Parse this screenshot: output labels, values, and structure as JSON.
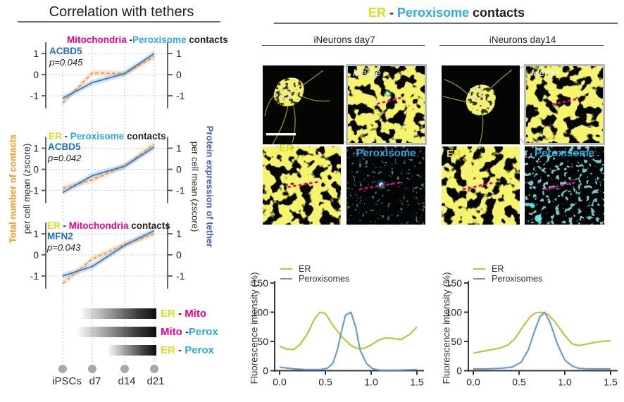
{
  "colors": {
    "er": "#d9e021",
    "mito": "#ec008c",
    "perox": "#2fa9e0",
    "tether": "#2272b9",
    "contacts_axis": "#f7941e",
    "tether_axis": "#4d5fae",
    "dark": "#231f20"
  },
  "left_panel": {
    "title": "Correlation with tethers",
    "y_left_line1": "Total number of contacts",
    "y_left_line2": "per cell mean (zscore)",
    "y_right_line1": "Protein expression of tether",
    "y_right_line2": "per cell mean (zscore)",
    "x_labels": [
      "iPSCs",
      "d7",
      "d14",
      "d21"
    ],
    "timeline_bars": [
      {
        "left": "ER",
        "sep": " - ",
        "right": "Mito"
      },
      {
        "left": "Mito",
        "sep": " -",
        "right": "Perox"
      },
      {
        "left": "ER",
        "sep": " - ",
        "right": "Perox"
      }
    ]
  },
  "right_panel": {
    "title_er": "ER",
    "title_sep": " - ",
    "title_perox": "Peroxisome",
    "title_suffix": " contacts",
    "col1_header": "iNeurons day7",
    "col2_header": "iNeurons day14",
    "labels": {
      "merge": "Merge",
      "er": "ER",
      "peroxisome": "Peroxisome"
    }
  },
  "chart_data": [
    {
      "id": "corr-mito-perox",
      "type": "line",
      "title_parts": [
        {
          "text": "Mitochondria",
          "color": "mito"
        },
        {
          "text": " -",
          "color": "dark"
        },
        {
          "text": "Peroxisome",
          "color": "perox"
        },
        {
          "text": " contacts",
          "color": "dark"
        }
      ],
      "tether": "ACBD5",
      "p_value": "p=0.045",
      "categories": [
        "iPSCs",
        "d7",
        "d14",
        "d21"
      ],
      "yticks": [
        1,
        0,
        -1
      ],
      "ylim": [
        -1.6,
        1.3
      ],
      "series": [
        {
          "name": "Total number of contacts (zscore)",
          "style": "dashed-orange",
          "values": [
            -1.35,
            0.08,
            0.05,
            0.85
          ]
        },
        {
          "name": "ACBD5 expression (zscore)",
          "style": "solid-blue",
          "values": [
            -1.12,
            -0.38,
            0.05,
            1.0
          ]
        }
      ]
    },
    {
      "id": "corr-er-perox",
      "type": "line",
      "title_parts": [
        {
          "text": "ER",
          "color": "er"
        },
        {
          "text": " - ",
          "color": "dark"
        },
        {
          "text": "Peroxisome",
          "color": "perox"
        },
        {
          "text": " contacts",
          "color": "dark"
        }
      ],
      "tether": "ACBD5",
      "p_value": "p=0.042",
      "categories": [
        "iPSCs",
        "d7",
        "d14",
        "d21"
      ],
      "yticks": [
        1,
        0,
        -1
      ],
      "ylim": [
        -1.6,
        1.3
      ],
      "series": [
        {
          "name": "Total number of contacts (zscore)",
          "style": "dashed-orange",
          "values": [
            -0.9,
            -0.5,
            0.15,
            1.2
          ]
        },
        {
          "name": "ACBD5 expression (zscore)",
          "style": "solid-blue",
          "values": [
            -1.1,
            -0.3,
            0.15,
            1.05
          ]
        }
      ]
    },
    {
      "id": "corr-er-mito",
      "type": "line",
      "title_parts": [
        {
          "text": "ER",
          "color": "er"
        },
        {
          "text": " - ",
          "color": "dark"
        },
        {
          "text": "Mitochondria",
          "color": "mito"
        },
        {
          "text": " contacts",
          "color": "dark"
        }
      ],
      "tether": "MFN2",
      "p_value": "p=0.043",
      "categories": [
        "iPSCs",
        "d7",
        "d14",
        "d21"
      ],
      "yticks": [
        1,
        0,
        -1
      ],
      "ylim": [
        -1.6,
        1.3
      ],
      "series": [
        {
          "name": "Total number of contacts (zscore)",
          "style": "dashed-orange",
          "values": [
            -1.35,
            -0.2,
            0.5,
            1.0
          ]
        },
        {
          "name": "MFN2 expression (zscore)",
          "style": "solid-blue",
          "values": [
            -1.0,
            -0.55,
            0.45,
            1.15
          ]
        }
      ]
    },
    {
      "id": "profile-day7",
      "type": "line",
      "ylabel": "Fluorescence intensity (%)",
      "yticks": [
        0,
        50,
        100,
        150
      ],
      "xticks": [
        "0.0",
        "0.5",
        "1.0",
        "1.5"
      ],
      "xlim": [
        0,
        1.5
      ],
      "ylim": [
        0,
        150
      ],
      "legend_position": "top-left",
      "series": [
        {
          "name": "ER",
          "x": [
            0,
            0.07,
            0.15,
            0.22,
            0.3,
            0.38,
            0.44,
            0.5,
            0.58,
            0.68,
            0.78,
            0.85,
            0.92,
            1.0,
            1.08,
            1.15,
            1.25,
            1.32,
            1.42,
            1.5
          ],
          "y": [
            42,
            37,
            36,
            44,
            62,
            88,
            100,
            98,
            78,
            58,
            43,
            38,
            38,
            44,
            52,
            56,
            55,
            53,
            62,
            75
          ]
        },
        {
          "name": "Peroxisomes",
          "x": [
            0,
            0.06,
            0.15,
            0.3,
            0.45,
            0.52,
            0.58,
            0.63,
            0.68,
            0.72,
            0.78,
            0.83,
            0.88,
            0.95,
            1.02,
            1.1,
            1.3,
            1.5
          ],
          "y": [
            6,
            5,
            3,
            2,
            2,
            4,
            12,
            35,
            70,
            95,
            100,
            75,
            35,
            12,
            3,
            1,
            1,
            2
          ]
        }
      ]
    },
    {
      "id": "profile-day14",
      "type": "line",
      "ylabel": "Fluorescence intensity (%)",
      "yticks": [
        0,
        50,
        100,
        150
      ],
      "xticks": [
        "0.0",
        "0.5",
        "1.0",
        "1.5"
      ],
      "xlim": [
        0,
        1.5
      ],
      "ylim": [
        0,
        150
      ],
      "legend_position": "top-left",
      "series": [
        {
          "name": "ER",
          "x": [
            0,
            0.1,
            0.2,
            0.3,
            0.38,
            0.46,
            0.54,
            0.62,
            0.68,
            0.75,
            0.82,
            0.9,
            1.0,
            1.08,
            1.15,
            1.25,
            1.35,
            1.45,
            1.5
          ],
          "y": [
            30,
            33,
            36,
            39,
            44,
            56,
            75,
            92,
            99,
            100,
            96,
            82,
            60,
            46,
            43,
            46,
            49,
            51,
            51
          ]
        },
        {
          "name": "Peroxisomes",
          "x": [
            0,
            0.15,
            0.3,
            0.42,
            0.52,
            0.6,
            0.67,
            0.73,
            0.78,
            0.84,
            0.92,
            1.0,
            1.08,
            1.15,
            1.25,
            1.4,
            1.5
          ],
          "y": [
            3,
            3,
            4,
            6,
            14,
            35,
            68,
            93,
            100,
            82,
            45,
            18,
            8,
            4,
            3,
            3,
            3
          ]
        }
      ]
    }
  ]
}
